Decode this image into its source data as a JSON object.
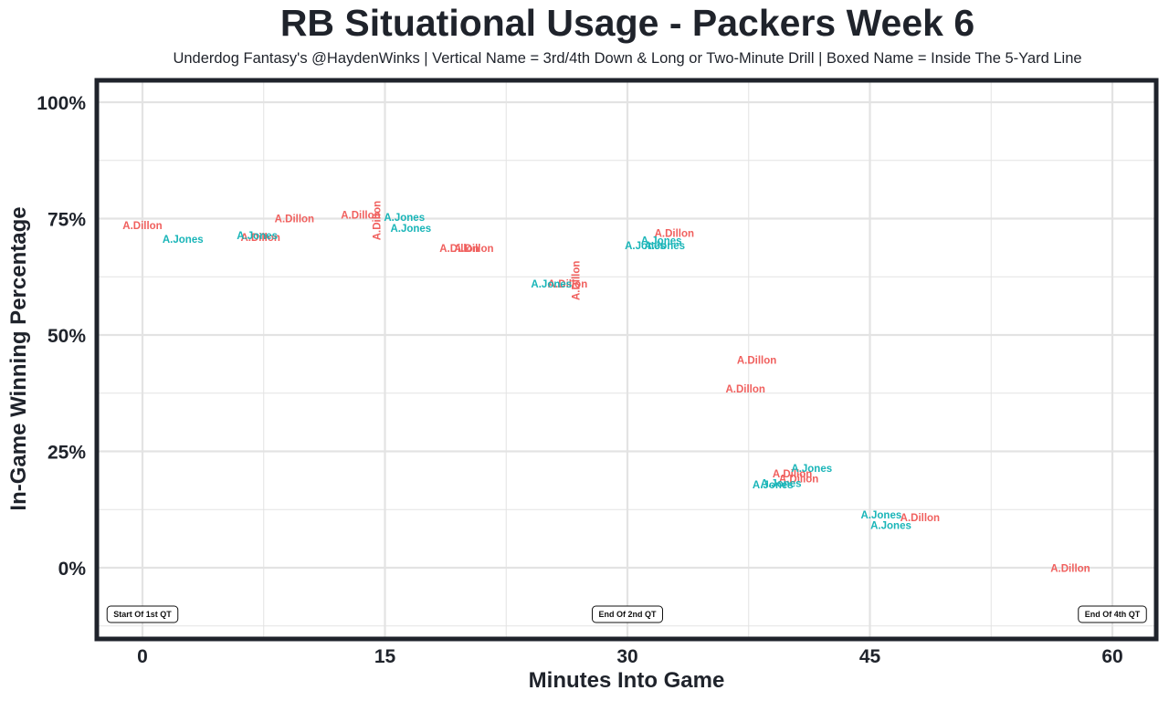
{
  "chart_data": {
    "type": "scatter",
    "title": "RB Situational Usage - Packers Week 6",
    "subtitle": "Underdog Fantasy's @HaydenWinks | Vertical Name = 3rd/4th Down & Long or Two-Minute Drill | Boxed Name = Inside The 5-Yard Line",
    "xlabel": "Minutes Into Game",
    "ylabel": "In-Game Winning Percentage",
    "xlim": [
      -3,
      63
    ],
    "ylim": [
      -16,
      104
    ],
    "x_ticks": [
      0,
      15,
      30,
      45,
      60
    ],
    "x_tick_labels": [
      "0",
      "15",
      "30",
      "45",
      "60"
    ],
    "y_ticks": [
      0,
      25,
      50,
      75,
      100
    ],
    "y_tick_labels": [
      "0%",
      "25%",
      "50%",
      "75%",
      "100%"
    ],
    "grid": true,
    "colors": {
      "A.Dillon": "#f0605e",
      "A.Jones": "#19b5b8",
      "frame": "#1f232b",
      "grid": "#e3e3e3"
    },
    "annotations": [
      {
        "x": 0,
        "y": -10,
        "text": "Start Of 1st QT"
      },
      {
        "x": 30,
        "y": -10,
        "text": "End Of 2nd QT"
      },
      {
        "x": 60,
        "y": -10,
        "text": "End Of 4th QT"
      }
    ],
    "series": [
      {
        "name": "A.Dillon",
        "points": [
          {
            "x": 0,
            "y": 73.5,
            "vertical": false
          },
          {
            "x": 7.3,
            "y": 71,
            "vertical": false
          },
          {
            "x": 9.4,
            "y": 75,
            "vertical": false
          },
          {
            "x": 13.5,
            "y": 75.8,
            "vertical": false
          },
          {
            "x": 14.5,
            "y": 74.6,
            "vertical": true
          },
          {
            "x": 19.6,
            "y": 68.6,
            "vertical": false
          },
          {
            "x": 20.5,
            "y": 68.6,
            "vertical": false
          },
          {
            "x": 26.3,
            "y": 61,
            "vertical": false
          },
          {
            "x": 26.8,
            "y": 61.7,
            "vertical": true
          },
          {
            "x": 32.9,
            "y": 71.9,
            "vertical": false
          },
          {
            "x": 38.0,
            "y": 44.6,
            "vertical": false
          },
          {
            "x": 37.3,
            "y": 38.4,
            "vertical": false
          },
          {
            "x": 40.2,
            "y": 20.2,
            "vertical": false
          },
          {
            "x": 40.6,
            "y": 19.1,
            "vertical": false
          },
          {
            "x": 48.1,
            "y": 10.8,
            "vertical": false
          },
          {
            "x": 57.4,
            "y": -0.1,
            "vertical": false
          }
        ]
      },
      {
        "name": "A.Jones",
        "points": [
          {
            "x": 2.5,
            "y": 70.6,
            "vertical": false
          },
          {
            "x": 7.1,
            "y": 71.4,
            "vertical": false
          },
          {
            "x": 16.2,
            "y": 75.3,
            "vertical": false
          },
          {
            "x": 16.6,
            "y": 72.9,
            "vertical": false
          },
          {
            "x": 31.1,
            "y": 69.2,
            "vertical": false
          },
          {
            "x": 32.3,
            "y": 69.2,
            "vertical": false
          },
          {
            "x": 32.1,
            "y": 70.3,
            "vertical": false
          },
          {
            "x": 25.3,
            "y": 61,
            "vertical": false
          },
          {
            "x": 41.4,
            "y": 21.4,
            "vertical": false
          },
          {
            "x": 39.5,
            "y": 18.1,
            "vertical": false
          },
          {
            "x": 39.0,
            "y": 17.8,
            "vertical": false
          },
          {
            "x": 45.7,
            "y": 11.4,
            "vertical": false
          },
          {
            "x": 46.3,
            "y": 9.1,
            "vertical": false
          }
        ]
      }
    ]
  }
}
